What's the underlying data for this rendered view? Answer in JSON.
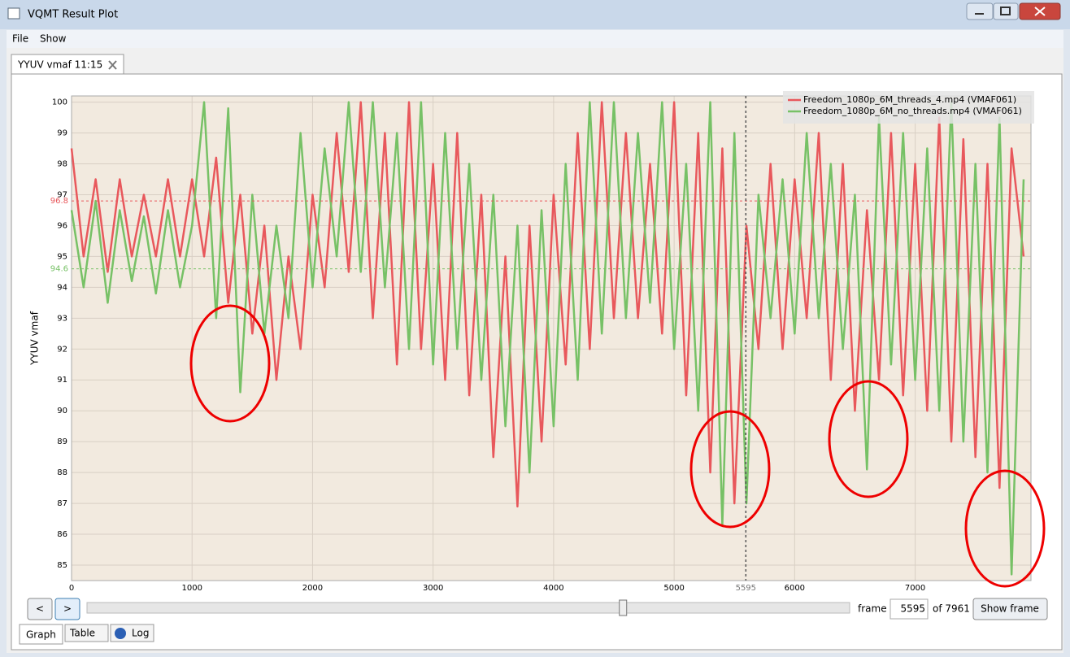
{
  "window": {
    "title": "VQMT Result Plot",
    "menu": [
      "File",
      "Show"
    ],
    "tab": "YYUV vmaf 11:15"
  },
  "chart_data": {
    "type": "line",
    "ylabel": "YYUV vmaf",
    "x": [
      0,
      100,
      200,
      300,
      400,
      500,
      600,
      700,
      800,
      900,
      1000,
      1100,
      1200,
      1300,
      1400,
      1500,
      1600,
      1700,
      1800,
      1900,
      2000,
      2100,
      2200,
      2300,
      2400,
      2500,
      2600,
      2700,
      2800,
      2900,
      3000,
      3100,
      3200,
      3300,
      3400,
      3500,
      3600,
      3700,
      3800,
      3900,
      4000,
      4100,
      4200,
      4300,
      4400,
      4500,
      4600,
      4700,
      4800,
      4900,
      5000,
      5100,
      5200,
      5300,
      5400,
      5500,
      5600,
      5700,
      5800,
      5900,
      6000,
      6100,
      6200,
      6300,
      6400,
      6500,
      6600,
      6700,
      6800,
      6900,
      7000,
      7100,
      7200,
      7300,
      7400,
      7500,
      7600,
      7700,
      7800,
      7900
    ],
    "series": [
      {
        "name": "Freedom_1080p_6M_threads_4.mp4 (VMAF061)",
        "color": "#e8585c",
        "mean": 96.8,
        "values": [
          98.5,
          95,
          97.5,
          94.5,
          97.5,
          95,
          97,
          95,
          97.5,
          95,
          97.5,
          95,
          98.2,
          93.5,
          97,
          92.5,
          96,
          91,
          95,
          92,
          97,
          94,
          99,
          94.5,
          100,
          93,
          99,
          91.5,
          100,
          92,
          98,
          91,
          99,
          90.5,
          97,
          88.5,
          95,
          86.9,
          96,
          89,
          97,
          91.5,
          99,
          92,
          100,
          93,
          99,
          93,
          98,
          92.5,
          100,
          90.5,
          99,
          88,
          98.5,
          87,
          96,
          92,
          98,
          92,
          97.5,
          93,
          99,
          91,
          98,
          90,
          96.5,
          91,
          99,
          90.5,
          98,
          90,
          99.5,
          89,
          98.8,
          88.5,
          98,
          87.5,
          98.5,
          95
        ]
      },
      {
        "name": "Freedom_1080p_6M_no_threads.mp4 (VMAF061)",
        "color": "#77c166",
        "mean": 94.6,
        "values": [
          96.5,
          94,
          96.8,
          93.5,
          96.5,
          94.2,
          96.3,
          93.8,
          96.5,
          94,
          96,
          100,
          93,
          99.8,
          90.6,
          97,
          92.5,
          96,
          93,
          99,
          94,
          98.5,
          95,
          100,
          94.5,
          100,
          94,
          99,
          92,
          100,
          91.5,
          99,
          92,
          98,
          91,
          97,
          89.5,
          96,
          88,
          96.5,
          89.5,
          98,
          91,
          100,
          92.5,
          100,
          93,
          99,
          93.5,
          100,
          92,
          98,
          90,
          100,
          86.3,
          99,
          87,
          97,
          93,
          97.5,
          92.5,
          99,
          93,
          98,
          92,
          97,
          88.1,
          99.5,
          91.5,
          99,
          91,
          98.5,
          90,
          100,
          89,
          98,
          88,
          99.5,
          84.7,
          97.5
        ]
      }
    ],
    "xlim": [
      0,
      7961
    ],
    "ylim": [
      84.5,
      100.2
    ],
    "xticks": [
      0,
      1000,
      2000,
      3000,
      4000,
      5000,
      6000,
      7000
    ],
    "yticks": [
      85,
      86,
      87,
      88,
      89,
      90,
      91,
      92,
      93,
      94,
      95,
      96,
      97,
      98,
      99,
      100
    ],
    "grid": true,
    "legend": "top-right",
    "cursor_frame": 5595
  },
  "controls": {
    "prev": "<",
    "next": ">",
    "frame_label": "frame",
    "of_label": "of 7961",
    "show_frame": "Show frame"
  },
  "bottom_tabs": [
    "Graph",
    "Table",
    "Log"
  ]
}
